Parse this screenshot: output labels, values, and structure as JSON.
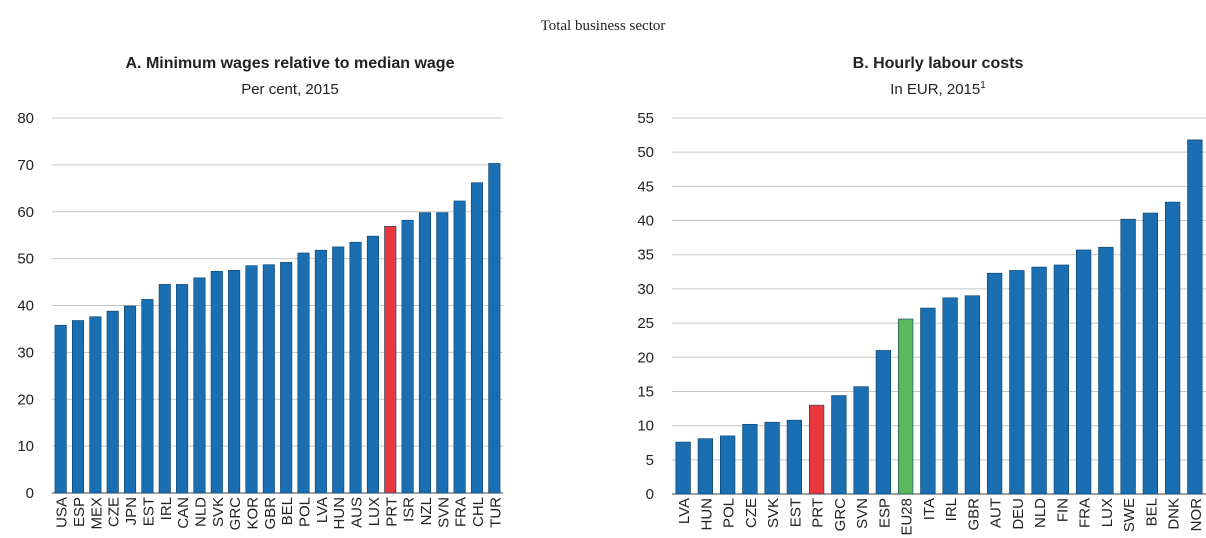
{
  "subtitle": "Total business sector",
  "chart_data": [
    {
      "type": "bar",
      "title": "A. Minimum wages relative to median wage",
      "subtitle": "Per cent, 2015",
      "categories": [
        "USA",
        "ESP",
        "MEX",
        "CZE",
        "JPN",
        "EST",
        "IRL",
        "CAN",
        "NLD",
        "SVK",
        "GRC",
        "KOR",
        "GBR",
        "BEL",
        "POL",
        "LVA",
        "HUN",
        "AUS",
        "LUX",
        "PRT",
        "ISR",
        "NZL",
        "SVN",
        "FRA",
        "CHL",
        "TUR"
      ],
      "values": [
        35.8,
        36.8,
        37.6,
        38.8,
        39.9,
        41.3,
        44.5,
        44.5,
        45.9,
        47.3,
        47.5,
        48.5,
        48.7,
        49.2,
        51.2,
        51.8,
        52.5,
        53.5,
        54.8,
        56.9,
        58.2,
        59.8,
        59.8,
        62.3,
        66.2,
        70.3
      ],
      "colors": [
        "#1a6fb3",
        "#1a6fb3",
        "#1a6fb3",
        "#1a6fb3",
        "#1a6fb3",
        "#1a6fb3",
        "#1a6fb3",
        "#1a6fb3",
        "#1a6fb3",
        "#1a6fb3",
        "#1a6fb3",
        "#1a6fb3",
        "#1a6fb3",
        "#1a6fb3",
        "#1a6fb3",
        "#1a6fb3",
        "#1a6fb3",
        "#1a6fb3",
        "#1a6fb3",
        "#e8373d",
        "#1a6fb3",
        "#1a6fb3",
        "#1a6fb3",
        "#1a6fb3",
        "#1a6fb3",
        "#1a6fb3"
      ],
      "ylim": [
        0,
        80
      ],
      "yticks": [
        0,
        10,
        20,
        30,
        40,
        50,
        60,
        70,
        80
      ],
      "grid": true
    },
    {
      "type": "bar",
      "title": "B. Hourly labour costs",
      "subtitle": "In EUR, 2015",
      "footnote": "1",
      "categories": [
        "LVA",
        "HUN",
        "POL",
        "CZE",
        "SVK",
        "EST",
        "PRT",
        "GRC",
        "SVN",
        "ESP",
        "EU28",
        "ITA",
        "IRL",
        "GBR",
        "AUT",
        "DEU",
        "NLD",
        "FIN",
        "FRA",
        "LUX",
        "SWE",
        "BEL",
        "DNK",
        "NOR"
      ],
      "values": [
        7.6,
        8.1,
        8.5,
        10.2,
        10.5,
        10.8,
        13.0,
        14.4,
        15.7,
        21.0,
        25.6,
        27.2,
        28.7,
        29.0,
        32.3,
        32.7,
        33.2,
        33.5,
        35.7,
        36.1,
        40.2,
        41.1,
        42.7,
        51.8
      ],
      "colors": [
        "#1a6fb3",
        "#1a6fb3",
        "#1a6fb3",
        "#1a6fb3",
        "#1a6fb3",
        "#1a6fb3",
        "#e8373d",
        "#1a6fb3",
        "#1a6fb3",
        "#1a6fb3",
        "#5cb85c",
        "#1a6fb3",
        "#1a6fb3",
        "#1a6fb3",
        "#1a6fb3",
        "#1a6fb3",
        "#1a6fb3",
        "#1a6fb3",
        "#1a6fb3",
        "#1a6fb3",
        "#1a6fb3",
        "#1a6fb3",
        "#1a6fb3",
        "#1a6fb3"
      ],
      "ylim": [
        0,
        55
      ],
      "yticks": [
        0,
        5,
        10,
        15,
        20,
        25,
        30,
        35,
        40,
        45,
        50,
        55
      ],
      "grid": true
    }
  ]
}
